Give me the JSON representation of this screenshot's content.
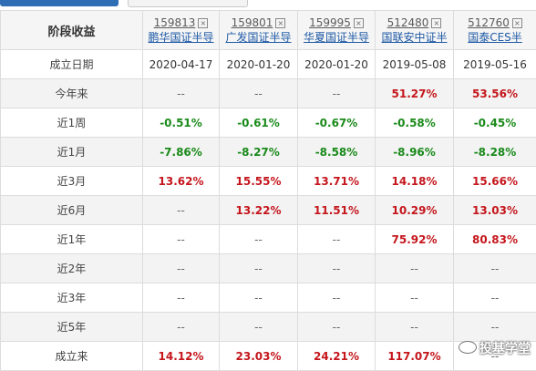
{
  "header": {
    "first": "阶段收益"
  },
  "funds": [
    {
      "code": "159813",
      "name": "鹏华国证半导"
    },
    {
      "code": "159801",
      "name": "广发国证半导"
    },
    {
      "code": "159995",
      "name": "华夏国证半导"
    },
    {
      "code": "512480",
      "name": "国联安中证半"
    },
    {
      "code": "512760",
      "name": "国泰CES半"
    }
  ],
  "rows": [
    {
      "label": "成立日期",
      "values": [
        "2020-04-17",
        "2020-01-20",
        "2020-01-20",
        "2019-05-08",
        "2019-05-16"
      ]
    },
    {
      "label": "今年来",
      "values": [
        "--",
        "--",
        "--",
        "51.27%",
        "53.56%"
      ]
    },
    {
      "label": "近1周",
      "values": [
        "-0.51%",
        "-0.61%",
        "-0.67%",
        "-0.58%",
        "-0.45%"
      ]
    },
    {
      "label": "近1月",
      "values": [
        "-7.86%",
        "-8.27%",
        "-8.58%",
        "-8.96%",
        "-8.28%"
      ]
    },
    {
      "label": "近3月",
      "values": [
        "13.62%",
        "15.55%",
        "13.71%",
        "14.18%",
        "15.66%"
      ]
    },
    {
      "label": "近6月",
      "values": [
        "--",
        "13.22%",
        "11.51%",
        "10.29%",
        "13.03%"
      ]
    },
    {
      "label": "近1年",
      "values": [
        "--",
        "--",
        "--",
        "75.92%",
        "80.83%"
      ]
    },
    {
      "label": "近2年",
      "values": [
        "--",
        "--",
        "--",
        "--",
        "--"
      ]
    },
    {
      "label": "近3年",
      "values": [
        "--",
        "--",
        "--",
        "--",
        "--"
      ]
    },
    {
      "label": "近5年",
      "values": [
        "--",
        "--",
        "--",
        "--",
        "--"
      ]
    },
    {
      "label": "成立来",
      "values": [
        "14.12%",
        "23.03%",
        "24.21%",
        "117.07%",
        "--"
      ]
    }
  ],
  "watermark": "投基学堂",
  "colors": {
    "positive": "#c4161c",
    "negative": "#1a8a1a",
    "fund_name": "#1f5aa6"
  }
}
